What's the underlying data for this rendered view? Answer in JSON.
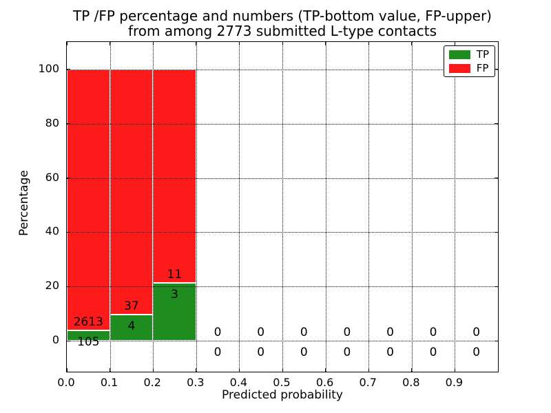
{
  "chart_data": {
    "type": "bar",
    "stacked": true,
    "normalized": "percent",
    "title_line1": "TP /FP percentage and numbers (TP-bottom value, FP-upper)",
    "title_line2": "from among 2773 submitted L-type contacts",
    "xlabel": "Predicted probability",
    "ylabel": "Percentage",
    "total_contacts": 2773,
    "xlim": [
      0.0,
      1.0
    ],
    "ylim": [
      -11.4,
      110.1
    ],
    "x_ticks": [
      0.0,
      0.1,
      0.2,
      0.3,
      0.4,
      0.5,
      0.6,
      0.7,
      0.8,
      0.9
    ],
    "x_tick_labels": [
      "0.0",
      "0.1",
      "0.2",
      "0.3",
      "0.4",
      "0.5",
      "0.6",
      "0.7",
      "0.8",
      "0.9"
    ],
    "y_ticks": [
      0,
      20,
      40,
      60,
      80,
      100
    ],
    "y_tick_labels": [
      "0",
      "20",
      "40",
      "60",
      "80",
      "100"
    ],
    "bin_left_edges": [
      0.0,
      0.1,
      0.2,
      0.3,
      0.4,
      0.5,
      0.6,
      0.7,
      0.8,
      0.9
    ],
    "bin_width": 0.1,
    "series": [
      {
        "name": "TP",
        "color": "#1f8c1f",
        "counts": [
          105,
          4,
          3,
          0,
          0,
          0,
          0,
          0,
          0,
          0
        ]
      },
      {
        "name": "FP",
        "color": "#fc1a1a",
        "counts": [
          2613,
          37,
          11,
          0,
          0,
          0,
          0,
          0,
          0,
          0
        ]
      }
    ],
    "legend": {
      "position": "upper-right",
      "entries": [
        {
          "label": "TP",
          "color": "#1f8c1f"
        },
        {
          "label": "FP",
          "color": "#fc1a1a"
        }
      ]
    },
    "grid": {
      "style": "dotted",
      "color": "#000000"
    }
  },
  "colors": {
    "background": "#ffffff",
    "frame": "#000000",
    "text": "#000000",
    "bar_edge": "#ffffff"
  }
}
